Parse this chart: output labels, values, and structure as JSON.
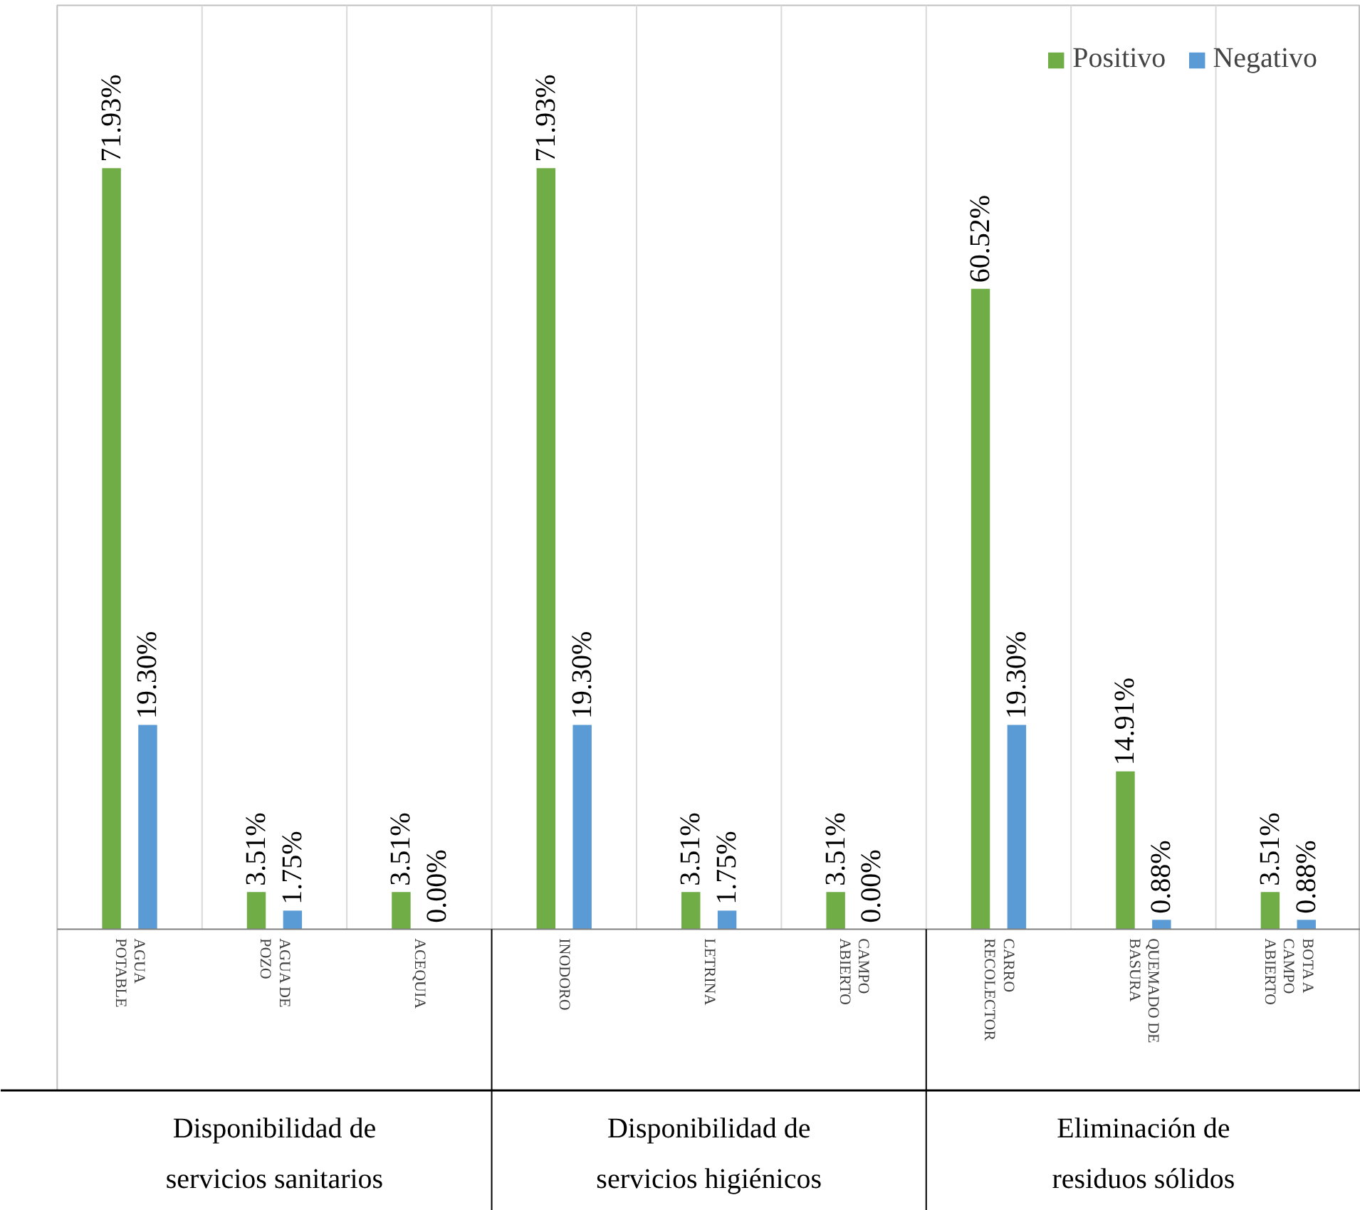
{
  "chart_data": {
    "type": "bar",
    "categories": [
      "AGUA POTABLE",
      "AGUA DE POZO",
      "ACEQUIA",
      "INODORO",
      "LETRINA",
      "CAMPO ABIERTO",
      "CARRO RECOLECTOR",
      "QUEMADO DE BASURA",
      "BOTA A CAMPO ABIERTO"
    ],
    "series": [
      {
        "name": "Positivo",
        "color": "#70ad47",
        "values": [
          71.93,
          3.51,
          3.51,
          71.93,
          3.51,
          3.51,
          60.52,
          14.91,
          3.51
        ],
        "value_labels": [
          "71.93%",
          "3.51%",
          "3.51%",
          "71.93%",
          "3.51%",
          "3.51%",
          "60.52%",
          "14.91%",
          "3.51%"
        ]
      },
      {
        "name": "Negativo",
        "color": "#5b9bd5",
        "values": [
          19.3,
          1.75,
          0.0,
          19.3,
          1.75,
          0.0,
          19.3,
          0.88,
          0.88
        ],
        "value_labels": [
          "19.30%",
          "1.75%",
          "0.00%",
          "19.30%",
          "1.75%",
          "0.00%",
          "19.30%",
          "0.88%",
          "0.88%"
        ]
      }
    ],
    "annotations": [
      "Disponibilidad de servicios sanitarios",
      "Disponibilidad de servicios higiénicos",
      "Eliminación de residuos sólidos"
    ],
    "grid": "x",
    "legend": "top right"
  }
}
